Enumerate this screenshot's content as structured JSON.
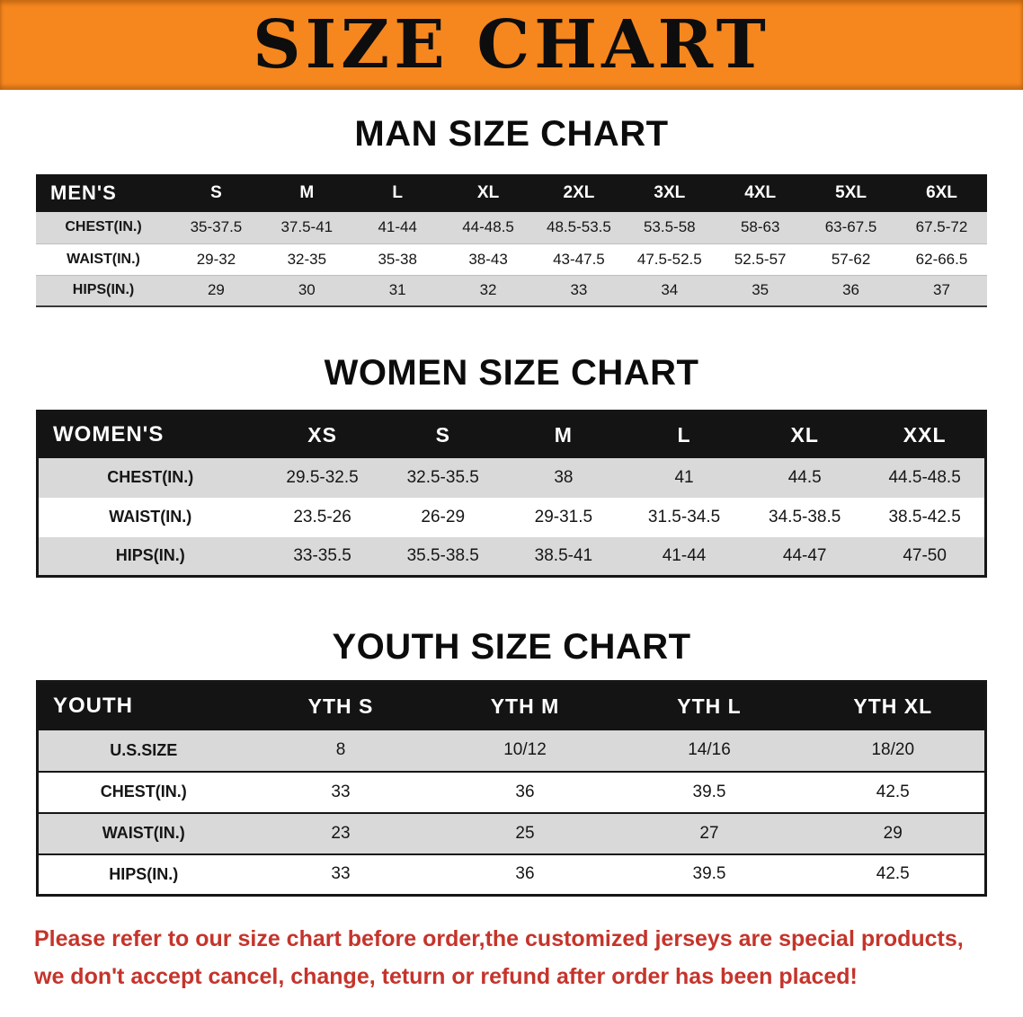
{
  "banner": {
    "title": "SIZE CHART"
  },
  "colors": {
    "banner_bg": "#F5871E",
    "header_bg": "#141414",
    "row_alt": "#D9D9D9",
    "note_red": "#C5342B"
  },
  "sections": [
    {
      "heading": "MAN SIZE CHART",
      "label_header": "MEN'S",
      "columns": [
        "S",
        "M",
        "L",
        "XL",
        "2XL",
        "3XL",
        "4XL",
        "5XL",
        "6XL"
      ],
      "rows": [
        {
          "label": "CHEST(IN.)",
          "values": [
            "35-37.5",
            "37.5-41",
            "41-44",
            "44-48.5",
            "48.5-53.5",
            "53.5-58",
            "58-63",
            "63-67.5",
            "67.5-72"
          ]
        },
        {
          "label": "WAIST(IN.)",
          "values": [
            "29-32",
            "32-35",
            "35-38",
            "38-43",
            "43-47.5",
            "47.5-52.5",
            "52.5-57",
            "57-62",
            "62-66.5"
          ]
        },
        {
          "label": "HIPS(IN.)",
          "values": [
            "29",
            "30",
            "31",
            "32",
            "33",
            "34",
            "35",
            "36",
            "37"
          ]
        }
      ]
    },
    {
      "heading": "WOMEN SIZE CHART",
      "label_header": "WOMEN'S",
      "columns": [
        "XS",
        "S",
        "M",
        "L",
        "XL",
        "XXL"
      ],
      "rows": [
        {
          "label": "CHEST(IN.)",
          "values": [
            "29.5-32.5",
            "32.5-35.5",
            "38",
            "41",
            "44.5",
            "44.5-48.5"
          ]
        },
        {
          "label": "WAIST(IN.)",
          "values": [
            "23.5-26",
            "26-29",
            "29-31.5",
            "31.5-34.5",
            "34.5-38.5",
            "38.5-42.5"
          ]
        },
        {
          "label": "HIPS(IN.)",
          "values": [
            "33-35.5",
            "35.5-38.5",
            "38.5-41",
            "41-44",
            "44-47",
            "47-50"
          ]
        }
      ]
    },
    {
      "heading": "YOUTH SIZE CHART",
      "label_header": "YOUTH",
      "columns": [
        "YTH S",
        "YTH M",
        "YTH L",
        "YTH XL"
      ],
      "rows": [
        {
          "label": "U.S.SIZE",
          "values": [
            "8",
            "10/12",
            "14/16",
            "18/20"
          ]
        },
        {
          "label": "CHEST(IN.)",
          "values": [
            "33",
            "36",
            "39.5",
            "42.5"
          ]
        },
        {
          "label": "WAIST(IN.)",
          "values": [
            "23",
            "25",
            "27",
            "29"
          ]
        },
        {
          "label": "HIPS(IN.)",
          "values": [
            "33",
            "36",
            "39.5",
            "42.5"
          ]
        }
      ]
    }
  ],
  "note": {
    "line1": "Please refer to our size chart before order,the customized jerseys are special products,",
    "line2": "we don't accept cancel, change, teturn or refund after order has been placed!"
  }
}
